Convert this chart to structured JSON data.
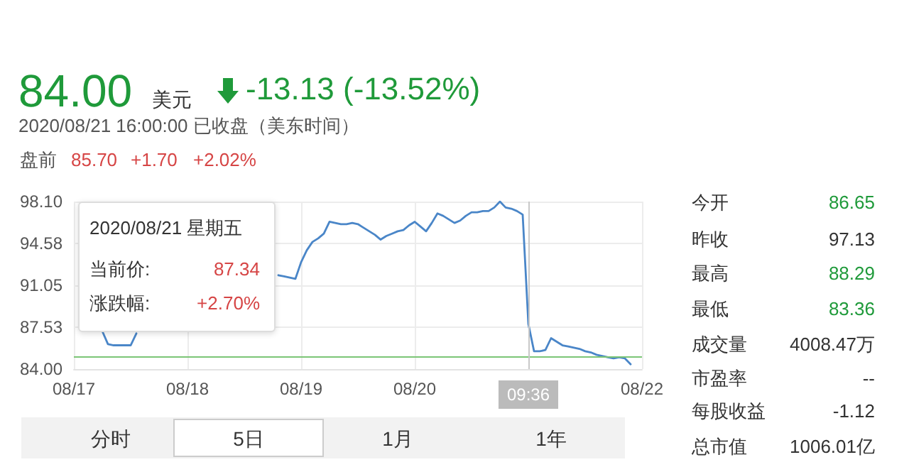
{
  "chart_data": {
    "type": "line",
    "marker": "none",
    "grid": true,
    "categories": [
      "08/17",
      null,
      null,
      null,
      null,
      null,
      null,
      null,
      null,
      null,
      null,
      null,
      null,
      null,
      null,
      null,
      null,
      null,
      null,
      null,
      "08/18",
      null,
      null,
      null,
      null,
      null,
      null,
      null,
      null,
      null,
      null,
      null,
      null,
      null,
      null,
      null,
      null,
      null,
      null,
      null,
      "08/19",
      null,
      null,
      null,
      null,
      null,
      null,
      null,
      null,
      null,
      null,
      null,
      null,
      null,
      null,
      null,
      null,
      null,
      null,
      null,
      "08/20",
      null,
      null,
      null,
      null,
      null,
      null,
      null,
      null,
      null,
      null,
      null,
      null,
      null,
      null,
      null,
      null,
      null,
      null,
      null,
      "09:36",
      null,
      null,
      null,
      null,
      null,
      null,
      null,
      null,
      null,
      null,
      null,
      null,
      null,
      null,
      null,
      null,
      null,
      null,
      null,
      "08/22"
    ],
    "ylim": [
      84,
      98.1
    ],
    "yticks": [
      {
        "value": 84,
        "label": "84.00"
      },
      {
        "value": 87.53,
        "label": "87.53"
      },
      {
        "value": 91.05,
        "label": "91.05"
      },
      {
        "value": 94.58,
        "label": "94.58"
      },
      {
        "value": 98.1,
        "label": "98.10"
      }
    ],
    "series": [
      {
        "color": "#4a86c8",
        "values": [
          null,
          null,
          null,
          null,
          null,
          87.2,
          86.1,
          86.0,
          86.0,
          86.0,
          86.0,
          87.0,
          null,
          null,
          null,
          null,
          null,
          null,
          null,
          null,
          null,
          null,
          null,
          null,
          null,
          null,
          null,
          null,
          null,
          null,
          null,
          null,
          null,
          null,
          null,
          null,
          91.9,
          91.8,
          91.7,
          91.6,
          93.0,
          94.0,
          94.7,
          95.0,
          95.4,
          96.4,
          96.3,
          96.2,
          96.2,
          96.3,
          96.2,
          95.9,
          95.6,
          95.3,
          94.9,
          95.2,
          95.4,
          95.6,
          95.7,
          96.1,
          96.4,
          96.0,
          95.6,
          96.3,
          97.1,
          96.9,
          96.6,
          96.3,
          96.5,
          96.9,
          97.2,
          97.2,
          97.3,
          97.3,
          97.6,
          98.1,
          97.6,
          97.5,
          97.3,
          97.0,
          87.8,
          85.5,
          85.5,
          85.6,
          86.6,
          86.3,
          86.0,
          85.9,
          85.8,
          85.7,
          85.5,
          85.4,
          85.2,
          85.1,
          85.0,
          84.9,
          85.0,
          84.9,
          84.4,
          null,
          null
        ]
      }
    ],
    "ref_lines": [
      {
        "axis": "y",
        "value": 85.1,
        "color": "#7cc576"
      },
      {
        "axis": "x",
        "value": "09:36",
        "color": "#c8c8c8"
      }
    ],
    "annotations": [
      "84.00",
      "美元",
      "-13.13 (-13.52%)",
      "2020/08/21 16:00:00 已收盘（美东时间）",
      "盘前",
      "85.70",
      "+1.70",
      "+2.02%",
      "2020/08/21 星期五",
      "当前价:",
      "87.34",
      "涨跌幅:",
      "+2.70%",
      "今开",
      "86.65",
      "昨收",
      "97.13",
      "最高",
      "88.29",
      "最低",
      "83.36",
      "成交量",
      "4008.47万",
      "市盈率",
      "--",
      "每股收益",
      "-1.12",
      "总市值",
      "1006.01亿",
      "分时",
      "5日",
      "1月",
      "1年"
    ]
  }
}
